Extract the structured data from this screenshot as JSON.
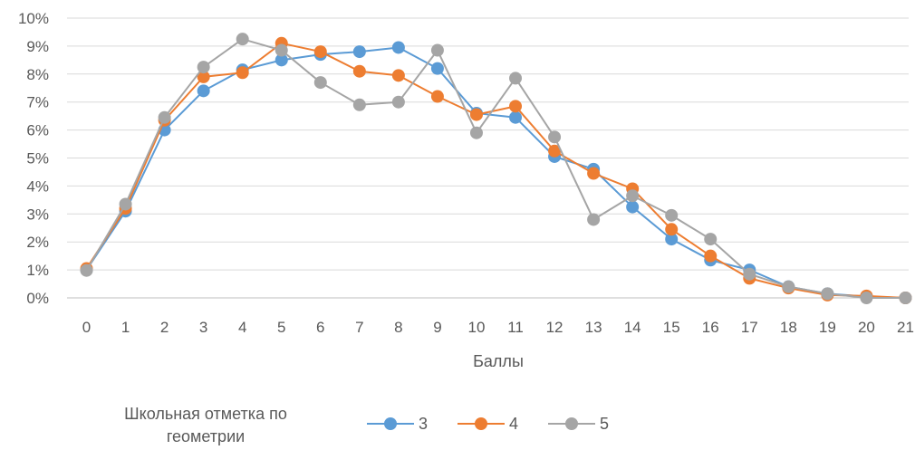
{
  "chart_data": {
    "type": "line",
    "title": "",
    "xlabel": "Баллы",
    "ylabel": "",
    "categories": [
      "0",
      "1",
      "2",
      "3",
      "4",
      "5",
      "6",
      "7",
      "8",
      "9",
      "10",
      "11",
      "12",
      "13",
      "14",
      "15",
      "16",
      "17",
      "18",
      "19",
      "20",
      "21"
    ],
    "y_ticks": [
      "0%",
      "1%",
      "2%",
      "3%",
      "4%",
      "5%",
      "6%",
      "7%",
      "8%",
      "9%",
      "10%"
    ],
    "ylim": [
      0,
      10
    ],
    "grid": true,
    "legend_position": "bottom",
    "legend_title": [
      "Школьная отметка по",
      "геометрии"
    ],
    "series": [
      {
        "name": "3",
        "color": "#5B9BD5",
        "values": [
          1.0,
          3.1,
          6.0,
          7.4,
          8.15,
          8.5,
          8.7,
          8.8,
          8.95,
          8.2,
          6.6,
          6.45,
          5.05,
          4.6,
          3.25,
          2.1,
          1.35,
          1.0,
          0.4,
          0.15,
          0.05,
          0.0
        ]
      },
      {
        "name": "4",
        "color": "#ED7D31",
        "values": [
          1.05,
          3.2,
          6.35,
          7.9,
          8.05,
          9.1,
          8.8,
          8.1,
          7.95,
          7.2,
          6.55,
          6.85,
          5.25,
          4.45,
          3.9,
          2.45,
          1.5,
          0.7,
          0.35,
          0.1,
          0.07,
          0.0
        ]
      },
      {
        "name": "5",
        "color": "#A5A5A5",
        "values": [
          0.98,
          3.35,
          6.45,
          8.25,
          9.25,
          8.85,
          7.7,
          6.9,
          7.0,
          8.85,
          5.9,
          7.85,
          5.75,
          2.8,
          3.65,
          2.95,
          2.1,
          0.85,
          0.4,
          0.15,
          0.0,
          0.0
        ]
      }
    ]
  }
}
